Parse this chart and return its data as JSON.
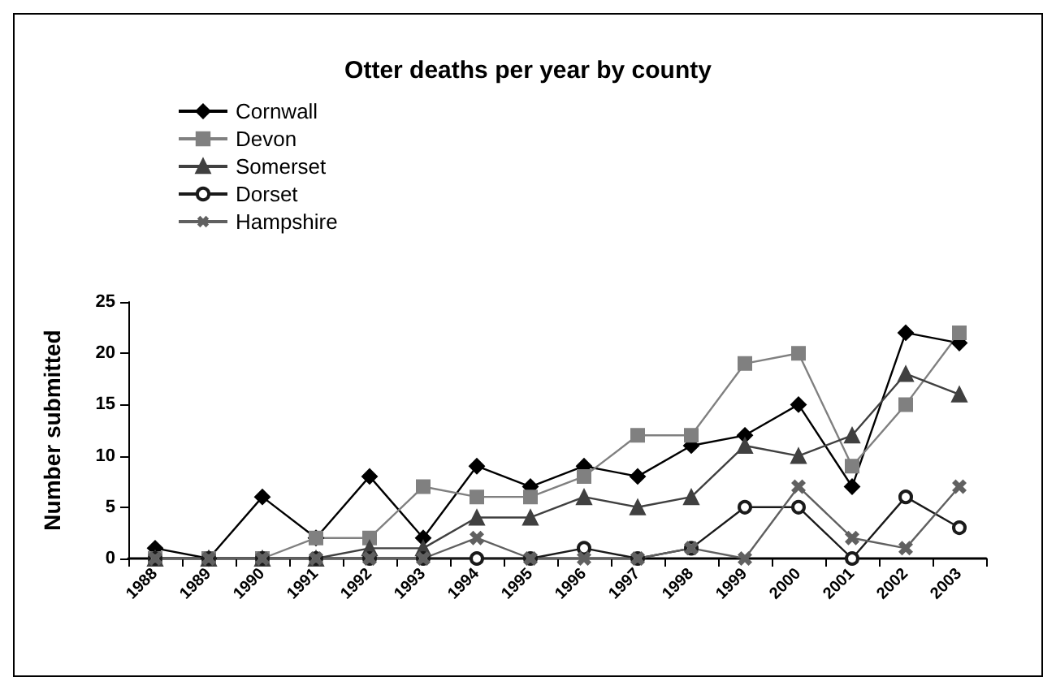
{
  "chart_data": {
    "type": "line",
    "title": "Otter deaths per year by county",
    "ylabel": "Number submitted",
    "categories": [
      "1988",
      "1989",
      "1990",
      "1991",
      "1992",
      "1993",
      "1994",
      "1995",
      "1996",
      "1997",
      "1998",
      "1999",
      "2000",
      "2001",
      "2002",
      "2003"
    ],
    "series": [
      {
        "name": "Cornwall",
        "color": "#000000",
        "marker": "diamond",
        "values": [
          1,
          0,
          6,
          2,
          8,
          2,
          9,
          7,
          9,
          8,
          11,
          12,
          15,
          7,
          22,
          21
        ]
      },
      {
        "name": "Devon",
        "color": "#808080",
        "marker": "square",
        "values": [
          0,
          0,
          0,
          2,
          2,
          7,
          6,
          6,
          8,
          12,
          12,
          19,
          20,
          9,
          15,
          22
        ]
      },
      {
        "name": "Somerset",
        "color": "#404040",
        "marker": "triangle",
        "values": [
          0,
          0,
          0,
          0,
          1,
          1,
          4,
          4,
          6,
          5,
          6,
          11,
          10,
          12,
          18,
          16
        ]
      },
      {
        "name": "Dorset",
        "color": "#1a1a1a",
        "marker": "circle",
        "values": [
          0,
          0,
          0,
          0,
          0,
          0,
          0,
          0,
          1,
          0,
          1,
          5,
          5,
          0,
          6,
          3
        ]
      },
      {
        "name": "Hampshire",
        "color": "#606060",
        "marker": "cross",
        "values": [
          0,
          0,
          0,
          0,
          0,
          0,
          2,
          0,
          0,
          0,
          1,
          0,
          7,
          2,
          1,
          7
        ]
      }
    ],
    "ylim": [
      0,
      25
    ],
    "yticks": [
      0,
      5,
      10,
      15,
      20,
      25
    ],
    "grid": false,
    "legend": "top left",
    "line_style": "solid"
  }
}
